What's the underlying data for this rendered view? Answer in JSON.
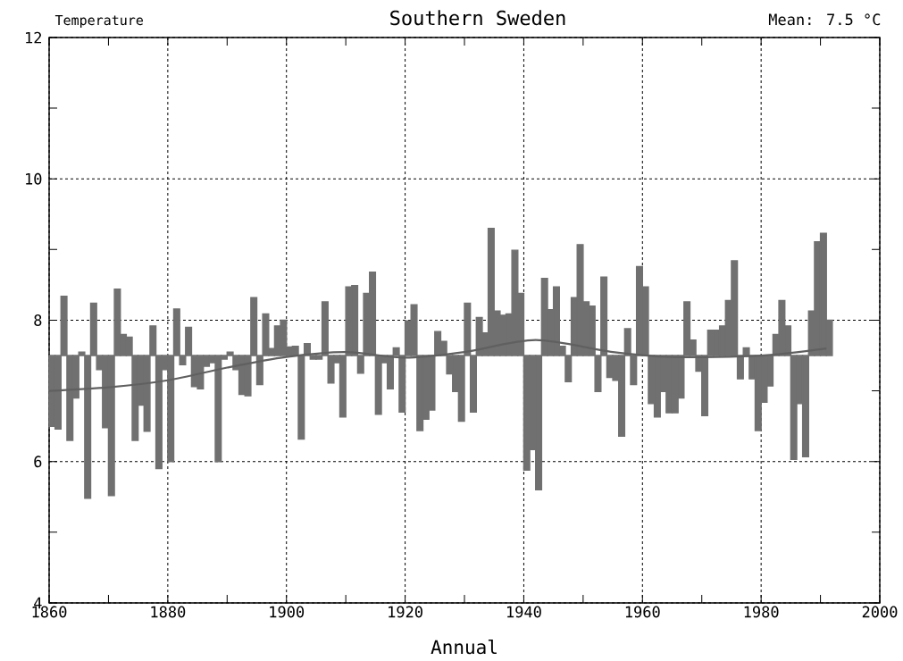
{
  "chart_data": {
    "type": "bar",
    "title": "Southern Sweden",
    "ylabel": "Temperature",
    "xlabel": "Annual",
    "annotations": [
      "Mean:  7.5  °C"
    ],
    "xlim": [
      1860,
      2000
    ],
    "ylim": [
      4,
      12
    ],
    "xticks": [
      1860,
      {
        "value": 1870,
        "label": null
      },
      1880,
      {
        "value": 1890,
        "label": null
      },
      1900,
      {
        "value": 1910,
        "label": null
      },
      1920,
      {
        "value": 1930,
        "label": null
      },
      1940,
      {
        "value": 1950,
        "label": null
      },
      1960,
      {
        "value": 1970,
        "label": null
      },
      1980,
      {
        "value": 1990,
        "label": null
      },
      2000
    ],
    "yticks": [
      4,
      {
        "value": 5,
        "label": null
      },
      6,
      {
        "value": 7,
        "label": null
      },
      8,
      {
        "value": 9,
        "label": null
      },
      10,
      {
        "value": 11,
        "label": null
      },
      12
    ],
    "grid": true,
    "series": [
      {
        "color": "#707070",
        "x": [
          1860,
          1861,
          1862,
          1863,
          1864,
          1865,
          1866,
          1867,
          1868,
          1869,
          1870,
          1871,
          1872,
          1873,
          1874,
          1875,
          1876,
          1877,
          1878,
          1879,
          1880,
          1881,
          1882,
          1883,
          1884,
          1885,
          1886,
          1887,
          1888,
          1889,
          1890,
          1891,
          1892,
          1893,
          1894,
          1895,
          1896,
          1897,
          1898,
          1899,
          1900,
          1901,
          1902,
          1903,
          1904,
          1905,
          1906,
          1907,
          1908,
          1909,
          1910,
          1911,
          1912,
          1913,
          1914,
          1915,
          1916,
          1917,
          1918,
          1919,
          1920,
          1921,
          1922,
          1923,
          1924,
          1925,
          1926,
          1927,
          1928,
          1929,
          1930,
          1931,
          1932,
          1933,
          1934,
          1935,
          1936,
          1937,
          1938,
          1939,
          1940,
          1941,
          1942,
          1943,
          1944,
          1945,
          1946,
          1947,
          1948,
          1949,
          1950,
          1951,
          1952,
          1953,
          1954,
          1955,
          1956,
          1957,
          1958,
          1959,
          1960,
          1961,
          1962,
          1963,
          1964,
          1965,
          1966,
          1967,
          1968,
          1969,
          1970,
          1971,
          1972,
          1973,
          1974,
          1975,
          1976,
          1977,
          1978,
          1979,
          1980,
          1981,
          1982,
          1983,
          1984,
          1985,
          1986,
          1987,
          1988,
          1989,
          1990,
          1991
        ],
        "base": [
          7.5,
          7.5,
          7.5,
          7.5,
          7.5,
          7.5,
          7.5,
          7.5,
          7.5,
          7.5,
          7.5,
          7.5,
          7.5,
          7.5,
          7.5,
          7.5,
          7.5,
          7.5,
          7.5,
          7.5,
          7.5,
          7.5,
          7.5,
          7.5,
          7.5,
          7.5,
          7.5,
          7.5,
          7.5,
          7.5,
          7.5,
          7.5,
          7.5,
          7.5,
          7.5,
          7.5,
          7.5,
          7.5,
          7.5,
          7.5,
          7.5,
          7.5,
          7.5,
          7.5,
          7.5,
          7.5,
          7.5,
          7.5,
          7.5,
          7.5,
          7.5,
          7.5,
          7.5,
          7.5,
          7.5,
          7.5,
          7.5,
          7.5,
          7.5,
          7.5,
          7.5,
          7.5,
          7.5,
          7.5,
          7.5,
          7.5,
          7.5,
          7.5,
          7.5,
          7.5,
          7.5,
          7.5,
          7.5,
          7.5,
          7.5,
          7.5,
          7.5,
          7.5,
          7.5,
          7.5,
          7.5,
          7.5,
          7.5,
          7.5,
          7.5,
          7.5,
          7.5,
          7.5,
          7.5,
          7.5,
          7.5,
          7.5,
          7.5,
          7.5,
          7.5,
          7.5,
          7.5,
          7.5,
          7.5,
          7.5,
          7.5,
          7.5,
          7.5,
          7.5,
          7.5,
          7.5,
          7.5,
          7.5,
          7.5,
          7.5,
          7.5,
          7.5,
          7.5,
          7.5,
          7.5,
          7.5,
          7.5,
          7.5,
          7.5,
          7.5,
          7.5,
          7.5,
          7.5,
          7.5,
          7.5,
          7.5,
          7.5,
          7.5,
          7.5,
          7.5,
          7.5,
          7.5
        ],
        "values": [
          -1.0,
          -1.04,
          0.84,
          -1.2,
          -0.6,
          0.05,
          -2.02,
          0.74,
          -0.2,
          -1.02,
          -1.98,
          0.94,
          0.3,
          0.26,
          -1.2,
          -0.7,
          -1.07,
          0.42,
          -1.6,
          -0.2,
          -1.5,
          0.66,
          -0.13,
          0.4,
          -0.44,
          -0.47,
          -0.15,
          -0.1,
          -1.5,
          -0.05,
          0.05,
          -0.2,
          -0.55,
          -0.57,
          0.82,
          -0.41,
          0.59,
          0.1,
          0.42,
          0.5,
          0.12,
          0.13,
          -1.18,
          0.17,
          -0.05,
          -0.05,
          0.76,
          -0.39,
          -0.1,
          -0.87,
          0.97,
          0.99,
          -0.25,
          0.88,
          1.18,
          -0.83,
          -0.1,
          -0.47,
          0.11,
          -0.8,
          0.49,
          0.72,
          -1.06,
          -0.9,
          -0.77,
          0.34,
          0.2,
          -0.26,
          -0.51,
          -0.93,
          0.74,
          -0.8,
          0.54,
          0.32,
          1.8,
          0.63,
          0.57,
          0.59,
          1.49,
          0.88,
          -1.62,
          -1.33,
          -1.9,
          1.09,
          0.65,
          0.97,
          0.13,
          -0.37,
          0.82,
          1.57,
          0.76,
          0.7,
          -0.51,
          1.11,
          -0.31,
          -0.35,
          -1.14,
          0.38,
          -0.41,
          1.26,
          0.97,
          -0.68,
          -0.87,
          -0.51,
          -0.81,
          -0.81,
          -0.6,
          0.76,
          0.22,
          -0.22,
          -0.85,
          0.36,
          0.36,
          0.42,
          0.78,
          1.34,
          -0.33,
          0.11,
          -0.33,
          -1.06,
          -0.66,
          -0.43,
          0.3,
          0.78,
          0.42,
          -1.47,
          -0.68,
          -1.43,
          0.63,
          1.61,
          1.73,
          0.5
        ]
      },
      {
        "type": "line",
        "color": "#606060",
        "x": [
          1860,
          1870,
          1880,
          1890,
          1900,
          1910,
          1920,
          1930,
          1942,
          1955,
          1965,
          1980,
          1991
        ],
        "values": [
          7.0,
          7.05,
          7.15,
          7.33,
          7.48,
          7.55,
          7.47,
          7.55,
          7.72,
          7.55,
          7.48,
          7.5,
          7.6
        ]
      }
    ]
  }
}
